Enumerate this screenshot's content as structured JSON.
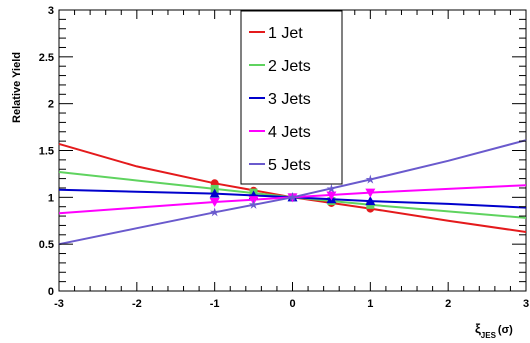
{
  "chart_data": {
    "type": "line",
    "title": "",
    "xlabel": "ξ",
    "xlabel_sub": "JES",
    "xlabel_unit": "(σ)",
    "ylabel": "Relative Yield",
    "xlim": [
      -3,
      3
    ],
    "ylim": [
      0,
      3
    ],
    "x_ticks": [
      -3,
      -2,
      -1,
      0,
      1,
      2,
      3
    ],
    "x_tick_labels": [
      "-3",
      "-2",
      "-1",
      "0",
      "1",
      "2",
      "3"
    ],
    "y_ticks": [
      0,
      0.5,
      1,
      1.5,
      2,
      2.5,
      3
    ],
    "y_tick_labels": [
      "0",
      "0.5",
      "1",
      "1.5",
      "2",
      "2.5",
      "3"
    ],
    "legend_position": "top-center",
    "grid": false,
    "marker_x": [
      -1,
      -0.5,
      0,
      0.5,
      1
    ],
    "series": [
      {
        "name": "1 Jet",
        "color": "#e41a1c",
        "marker": "circle",
        "curve_x": [
          -3,
          -2,
          -1,
          0,
          1,
          2,
          3
        ],
        "curve_y": [
          1.57,
          1.33,
          1.15,
          1.0,
          0.88,
          0.75,
          0.63
        ],
        "marker_y": [
          1.15,
          1.07,
          1.0,
          0.94,
          0.88
        ]
      },
      {
        "name": "2 Jets",
        "color": "#5fd35f",
        "marker": "square",
        "curve_x": [
          -3,
          -2,
          -1,
          0,
          1,
          2,
          3
        ],
        "curve_y": [
          1.27,
          1.18,
          1.09,
          1.0,
          0.92,
          0.85,
          0.78
        ],
        "marker_y": [
          1.09,
          1.05,
          1.0,
          0.96,
          0.92
        ]
      },
      {
        "name": "3 Jets",
        "color": "#0000cc",
        "marker": "triangle-up",
        "curve_x": [
          -3,
          -2,
          -1,
          0,
          1,
          2,
          3
        ],
        "curve_y": [
          1.08,
          1.06,
          1.04,
          1.0,
          0.96,
          0.93,
          0.89
        ],
        "marker_y": [
          1.04,
          1.02,
          1.0,
          0.98,
          0.96
        ]
      },
      {
        "name": "4 Jets",
        "color": "#ff00ff",
        "marker": "triangle-down",
        "curve_x": [
          -3,
          -2,
          -1,
          0,
          1,
          2,
          3
        ],
        "curve_y": [
          0.83,
          0.89,
          0.95,
          1.0,
          1.05,
          1.09,
          1.13
        ],
        "marker_y": [
          0.95,
          0.97,
          1.0,
          1.02,
          1.05
        ]
      },
      {
        "name": "5 Jets",
        "color": "#6a5acd",
        "marker": "star",
        "curve_x": [
          -3,
          -2,
          -1,
          0,
          1,
          2,
          3
        ],
        "curve_y": [
          0.5,
          0.67,
          0.84,
          1.0,
          1.19,
          1.39,
          1.61
        ],
        "marker_y": [
          0.84,
          0.92,
          1.0,
          1.09,
          1.19
        ]
      }
    ]
  }
}
